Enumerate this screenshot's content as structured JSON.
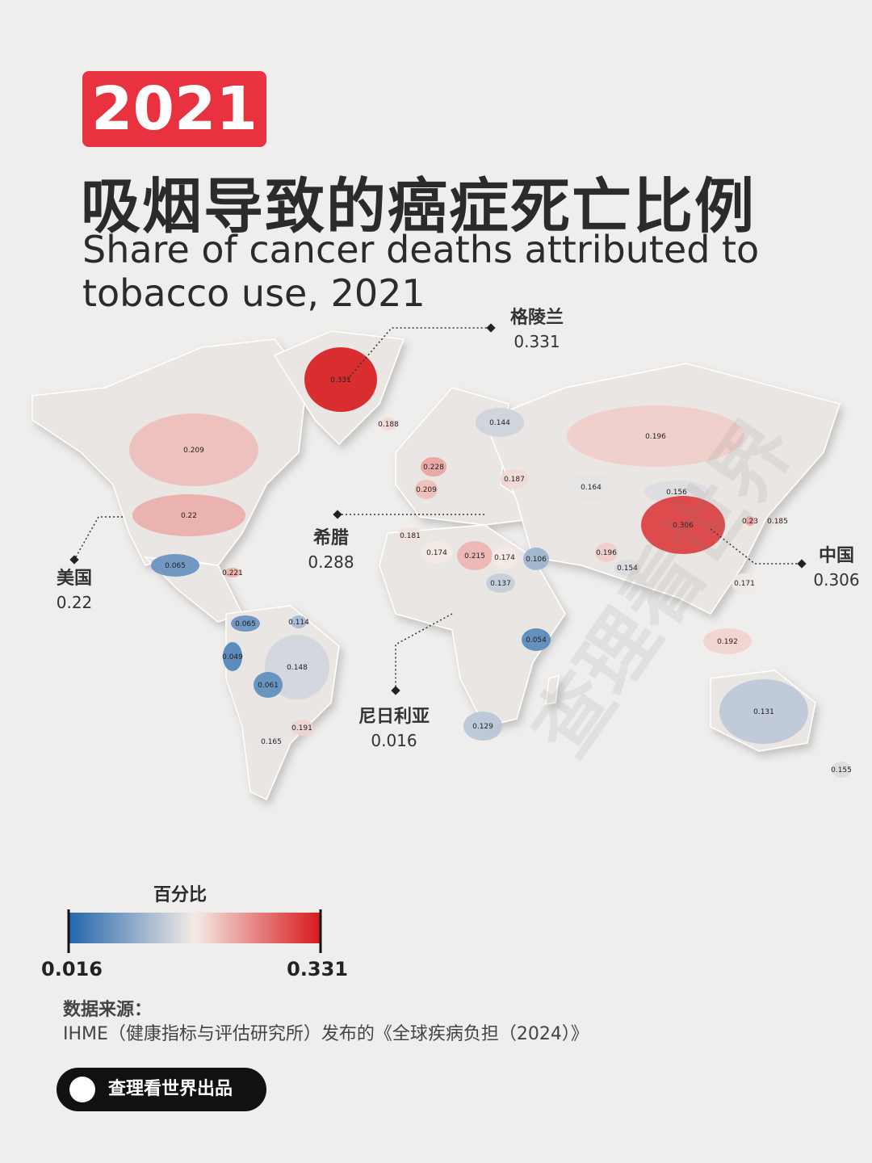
{
  "header": {
    "year": "2021",
    "title": "吸烟导致的癌症死亡比例",
    "subtitle": "Share of cancer deaths attributed to tobacco use, 2021"
  },
  "chart_data": {
    "type": "map",
    "colorscale": [
      "#2166ac",
      "#f4ebe6",
      "#d7191c"
    ],
    "legend": {
      "title": "百分比",
      "min": 0.016,
      "max": 0.331
    },
    "callouts": [
      {
        "name": "格陵兰",
        "value": 0.331
      },
      {
        "name": "希腊",
        "value": 0.288
      },
      {
        "name": "美国",
        "value": 0.22
      },
      {
        "name": "中国",
        "value": 0.306
      },
      {
        "name": "尼日利亚",
        "value": 0.016
      }
    ],
    "regions": {
      "values": [
        0.331,
        0.188,
        0.144,
        0.196,
        0.209,
        0.228,
        0.209,
        0.187,
        0.164,
        0.156,
        0.22,
        0.181,
        0.174,
        0.215,
        0.174,
        0.106,
        0.196,
        0.306,
        0.23,
        0.185,
        0.065,
        0.221,
        0.137,
        0.154,
        0.171,
        0.065,
        0.114,
        0.049,
        0.148,
        0.054,
        0.061,
        0.192,
        0.191,
        0.165,
        0.129,
        0.131,
        0.155
      ]
    }
  },
  "source": {
    "label": "数据来源：",
    "text": "IHME（健康指标与评估研究所）发布的《全球疾病负担（2024）》"
  },
  "brand": "查理看世界出品",
  "watermark": "查理看世界"
}
